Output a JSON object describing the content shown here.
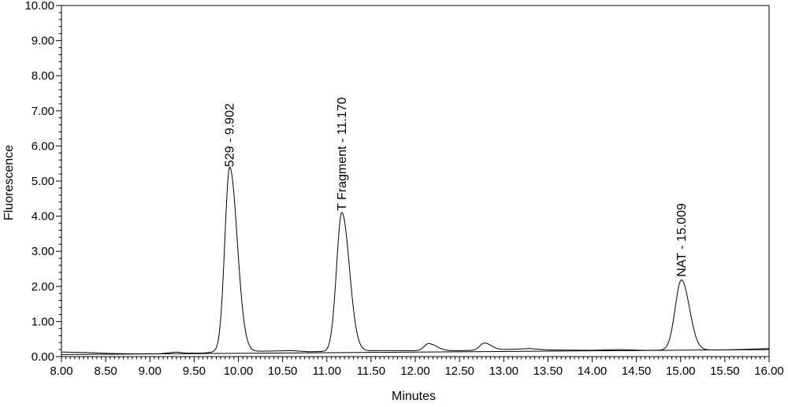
{
  "chart_data": {
    "type": "line",
    "title": "",
    "xlabel": "Minutes",
    "ylabel": "Fluorescence",
    "xlim": [
      8.0,
      16.0
    ],
    "ylim": [
      0.0,
      10.0
    ],
    "x_ticks": [
      8.0,
      8.5,
      9.0,
      9.5,
      10.0,
      10.5,
      11.0,
      11.5,
      12.0,
      12.5,
      13.0,
      13.5,
      14.0,
      14.5,
      15.0,
      15.5,
      16.0
    ],
    "x_tick_labels": [
      "8.00",
      "8.50",
      "9.00",
      "9.50",
      "10.00",
      "10.50",
      "11.00",
      "11.50",
      "12.00",
      "12.50",
      "13.00",
      "13.50",
      "14.00",
      "14.50",
      "15.00",
      "15.50",
      "16.00"
    ],
    "y_ticks": [
      0,
      1,
      2,
      3,
      4,
      5,
      6,
      7,
      8,
      9,
      10
    ],
    "y_tick_labels": [
      "0.00",
      "1.00",
      "2.00",
      "3.00",
      "4.00",
      "5.00",
      "6.00",
      "7.00",
      "8.00",
      "9.00",
      "10.00"
    ],
    "grid": false,
    "line_color": "#000000",
    "baseline": {
      "x": [
        8.0,
        16.0
      ],
      "y": [
        0.06,
        0.2
      ]
    },
    "series": [
      {
        "baseline": 0.1,
        "baseline_points": [
          [
            8.0,
            0.13
          ],
          [
            8.2,
            0.12
          ],
          [
            8.35,
            0.11
          ],
          [
            8.55,
            0.09
          ],
          [
            8.8,
            0.08
          ],
          [
            9.1,
            0.08
          ],
          [
            9.3,
            0.13
          ],
          [
            9.4,
            0.1
          ],
          [
            9.6,
            0.1
          ],
          [
            9.75,
            0.14
          ],
          [
            10.2,
            0.15
          ],
          [
            10.6,
            0.17
          ],
          [
            10.8,
            0.14
          ],
          [
            11.6,
            0.17
          ],
          [
            12.0,
            0.17
          ],
          [
            12.5,
            0.17
          ],
          [
            13.0,
            0.2
          ],
          [
            13.3,
            0.23
          ],
          [
            13.5,
            0.19
          ],
          [
            14.0,
            0.18
          ],
          [
            14.3,
            0.2
          ],
          [
            14.6,
            0.18
          ],
          [
            15.5,
            0.19
          ],
          [
            16.0,
            0.23
          ]
        ],
        "peaks": [
          {
            "center": 9.902,
            "height": 5.25,
            "sigma_left": 0.055,
            "sigma_right": 0.085
          },
          {
            "center": 11.17,
            "height": 3.95,
            "sigma_left": 0.06,
            "sigma_right": 0.085
          },
          {
            "center": 12.15,
            "height": 0.2,
            "sigma_left": 0.05,
            "sigma_right": 0.09
          },
          {
            "center": 12.78,
            "height": 0.2,
            "sigma_left": 0.05,
            "sigma_right": 0.08
          },
          {
            "center": 15.009,
            "height": 2.0,
            "sigma_left": 0.07,
            "sigma_right": 0.09
          }
        ]
      }
    ],
    "annotations": [
      {
        "text": "529 - 9.902",
        "x": 9.902,
        "y": 5.4
      },
      {
        "text": "T Fragment - 11.170",
        "x": 11.17,
        "y": 4.15
      },
      {
        "text": "NAT - 15.009",
        "x": 15.009,
        "y": 2.27
      }
    ]
  }
}
